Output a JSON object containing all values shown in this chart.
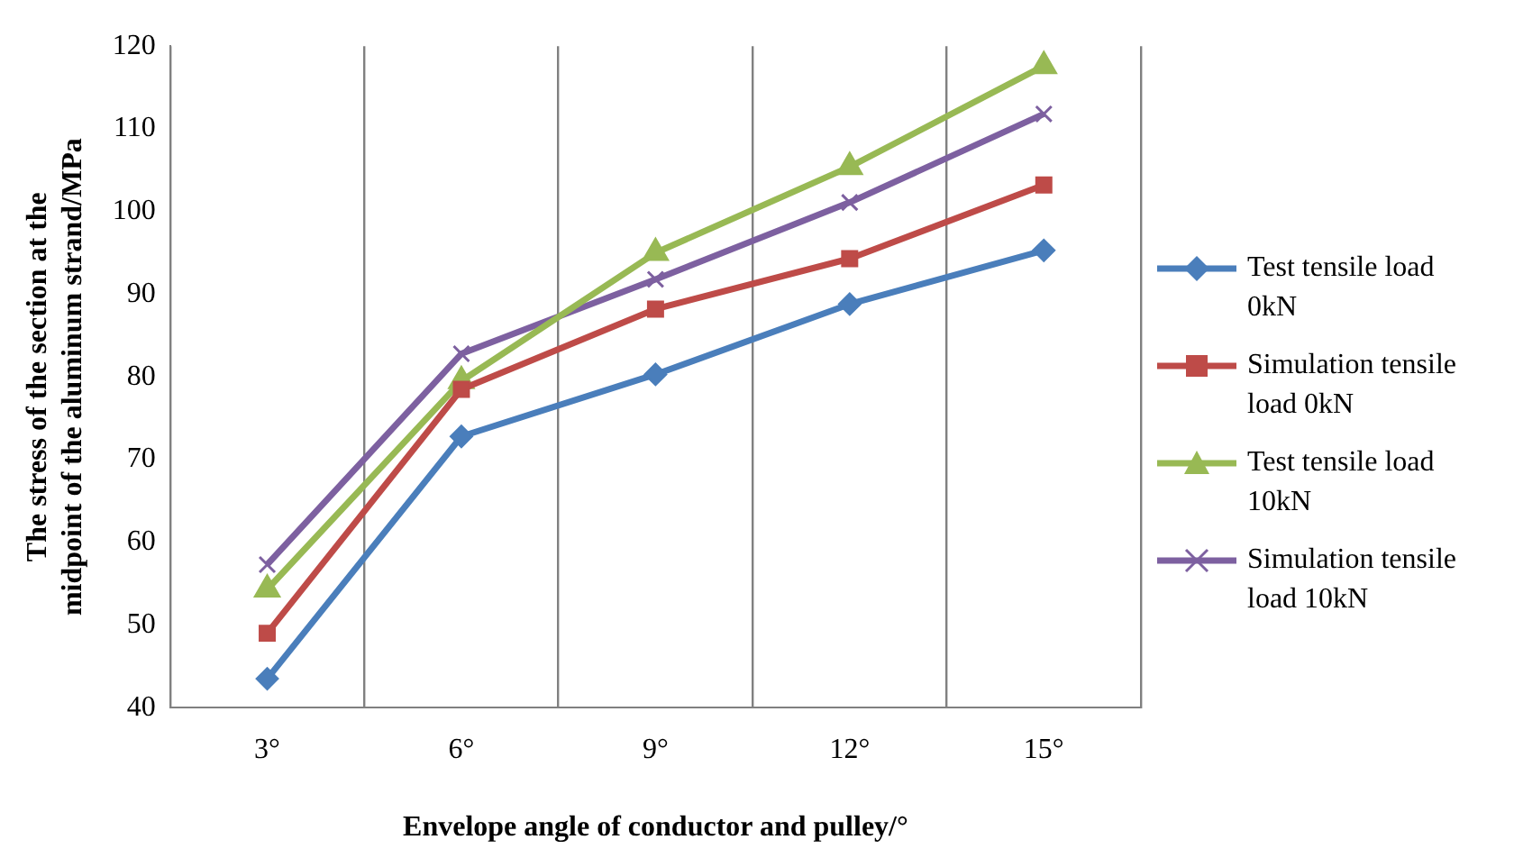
{
  "chart_data": {
    "type": "line",
    "xlabel": "Envelope angle of conductor and pulley/°",
    "ylabel": "The stress of the section at the midpoint of the aluminum strand/MPa",
    "categories": [
      "3°",
      "6°",
      "9°",
      "12°",
      "15°"
    ],
    "series": [
      {
        "name": "Test tensile load 0kN",
        "color": "#4a7ebb",
        "marker": "diamond",
        "values": [
          43.5,
          72.8,
          80.3,
          88.8,
          95.3
        ]
      },
      {
        "name": "Simulation tensile load 0kN",
        "color": "#be4b48",
        "marker": "square",
        "values": [
          49,
          78.5,
          88.2,
          94.3,
          103.2
        ]
      },
      {
        "name": "Test tensile load 10kN",
        "color": "#98b954",
        "marker": "triangle",
        "values": [
          54.3,
          79.5,
          95,
          105.4,
          117.6
        ]
      },
      {
        "name": "Simulation tensile load 10kN",
        "color": "#7d60a0",
        "marker": "cross",
        "values": [
          57.3,
          82.8,
          91.8,
          101.1,
          111.8
        ]
      }
    ],
    "ylim": [
      40,
      120
    ],
    "yticks": [
      40,
      50,
      60,
      70,
      80,
      90,
      100,
      110,
      120
    ],
    "grid": "x",
    "legend": "right",
    "line_style": "solid"
  }
}
